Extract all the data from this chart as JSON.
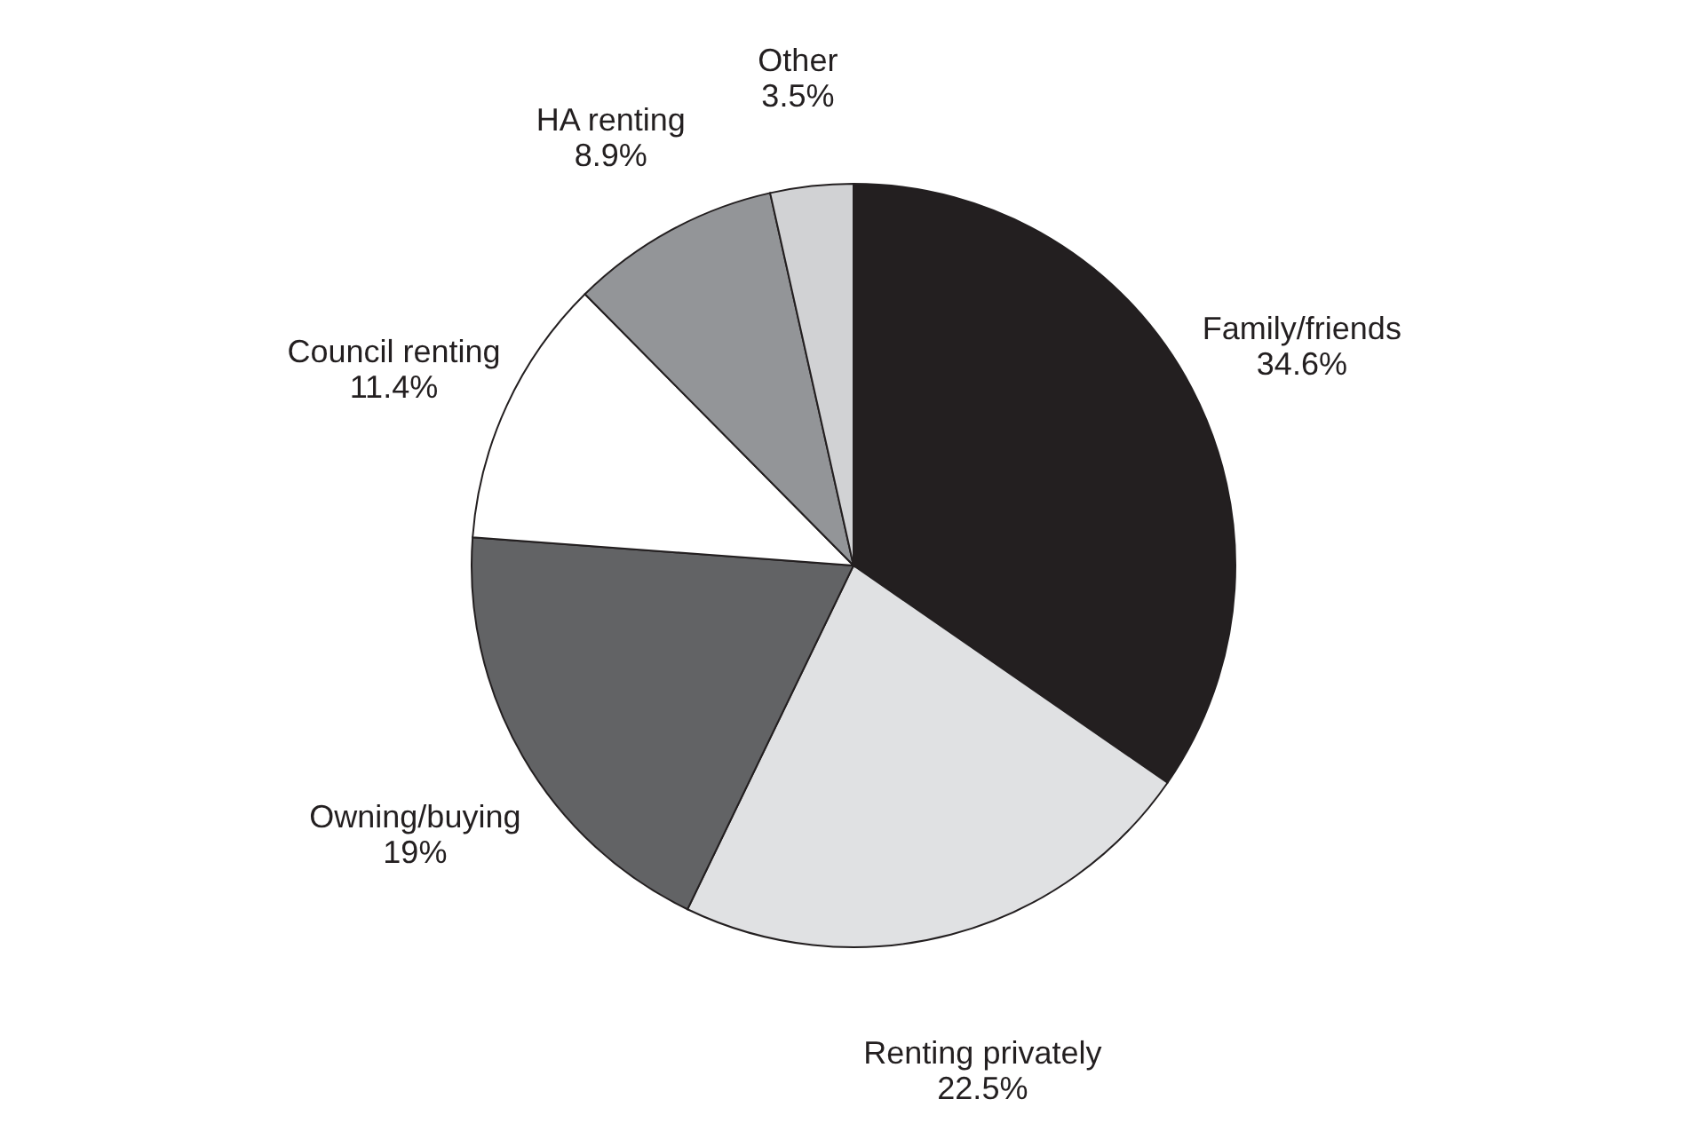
{
  "chart_data": {
    "type": "pie",
    "categories": [
      "Family/friends",
      "Renting privately",
      "Owning/buying",
      "Council renting",
      "HA renting",
      "Other"
    ],
    "values": [
      34.6,
      22.5,
      19,
      11.4,
      8.9,
      3.5
    ],
    "value_labels": [
      "34.6%",
      "22.5%",
      "19%",
      "11.4%",
      "8.9%",
      "3.5%"
    ],
    "colors": [
      "#231f20",
      "#e0e1e3",
      "#626365",
      "#ffffff",
      "#939598",
      "#d1d2d4"
    ]
  }
}
